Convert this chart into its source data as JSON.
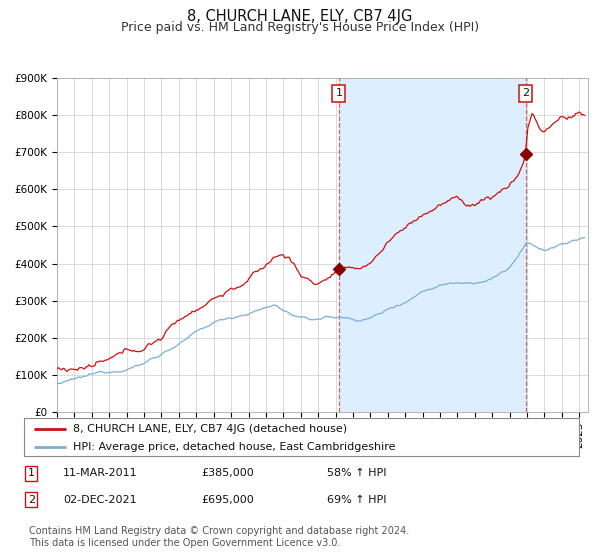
{
  "title": "8, CHURCH LANE, ELY, CB7 4JG",
  "subtitle": "Price paid vs. HM Land Registry's House Price Index (HPI)",
  "ylim": [
    0,
    900000
  ],
  "yticks": [
    0,
    100000,
    200000,
    300000,
    400000,
    500000,
    600000,
    700000,
    800000,
    900000
  ],
  "ytick_labels": [
    "£0",
    "£100K",
    "£200K",
    "£300K",
    "£400K",
    "£500K",
    "£600K",
    "£700K",
    "£800K",
    "£900K"
  ],
  "xlim_start": 1995.0,
  "xlim_end": 2025.5,
  "figure_bg": "#ffffff",
  "plot_bg": "#ffffff",
  "grid_color": "#cccccc",
  "shade_color": "#ddeeff",
  "hpi_line_color": "#7aafd4",
  "price_line_color": "#cc1111",
  "marker_color": "#880000",
  "vline_color": "#cc6666",
  "annotation_box_edgecolor": "#cc1111",
  "event1_x": 2011.19,
  "event1_y_price": 385000,
  "event1_label": "1",
  "event2_x": 2021.92,
  "event2_y_price": 695000,
  "event2_label": "2",
  "legend_line1": "8, CHURCH LANE, ELY, CB7 4JG (detached house)",
  "legend_line2": "HPI: Average price, detached house, East Cambridgeshire",
  "table_row1_num": "1",
  "table_row1_date": "11-MAR-2011",
  "table_row1_price": "£385,000",
  "table_row1_hpi": "58% ↑ HPI",
  "table_row2_num": "2",
  "table_row2_date": "02-DEC-2021",
  "table_row2_price": "£695,000",
  "table_row2_hpi": "69% ↑ HPI",
  "footnote": "Contains HM Land Registry data © Crown copyright and database right 2024.\nThis data is licensed under the Open Government Licence v3.0.",
  "title_fontsize": 10.5,
  "subtitle_fontsize": 9,
  "tick_fontsize": 7.5,
  "legend_fontsize": 8,
  "table_fontsize": 8,
  "footnote_fontsize": 7
}
